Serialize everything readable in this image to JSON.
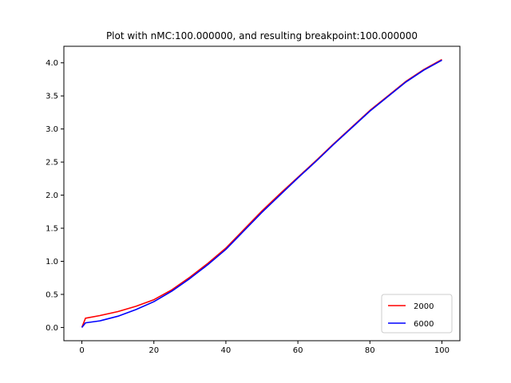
{
  "chart_data": {
    "type": "line",
    "title": "Plot with nMC:100.000000, and resulting breakpoint:100.000000",
    "xlabel": "",
    "ylabel": "",
    "xlim": [
      -5,
      105
    ],
    "ylim": [
      -0.2,
      4.25
    ],
    "xticks": [
      0,
      20,
      40,
      60,
      80,
      100
    ],
    "xtick_labels": [
      "0",
      "20",
      "40",
      "60",
      "80",
      "100"
    ],
    "yticks": [
      0.0,
      0.5,
      1.0,
      1.5,
      2.0,
      2.5,
      3.0,
      3.5,
      4.0
    ],
    "ytick_labels": [
      "0.0",
      "0.5",
      "1.0",
      "1.5",
      "2.0",
      "2.5",
      "3.0",
      "3.5",
      "4.0"
    ],
    "grid": false,
    "legend_position": "lower-right",
    "x": [
      0,
      1,
      5,
      10,
      15,
      20,
      25,
      30,
      35,
      40,
      45,
      50,
      55,
      60,
      65,
      70,
      75,
      80,
      85,
      90,
      95,
      100
    ],
    "series": [
      {
        "name": "2000",
        "color": "#ff0000",
        "values": [
          0.0,
          0.14,
          0.18,
          0.24,
          0.32,
          0.42,
          0.57,
          0.76,
          0.97,
          1.2,
          1.48,
          1.76,
          2.02,
          2.27,
          2.52,
          2.78,
          3.03,
          3.28,
          3.5,
          3.72,
          3.9,
          4.05
        ]
      },
      {
        "name": "6000",
        "color": "#0000ff",
        "values": [
          0.0,
          0.07,
          0.1,
          0.17,
          0.27,
          0.39,
          0.55,
          0.74,
          0.95,
          1.18,
          1.46,
          1.74,
          2.0,
          2.26,
          2.51,
          2.77,
          3.02,
          3.27,
          3.49,
          3.71,
          3.89,
          4.04
        ]
      }
    ]
  }
}
